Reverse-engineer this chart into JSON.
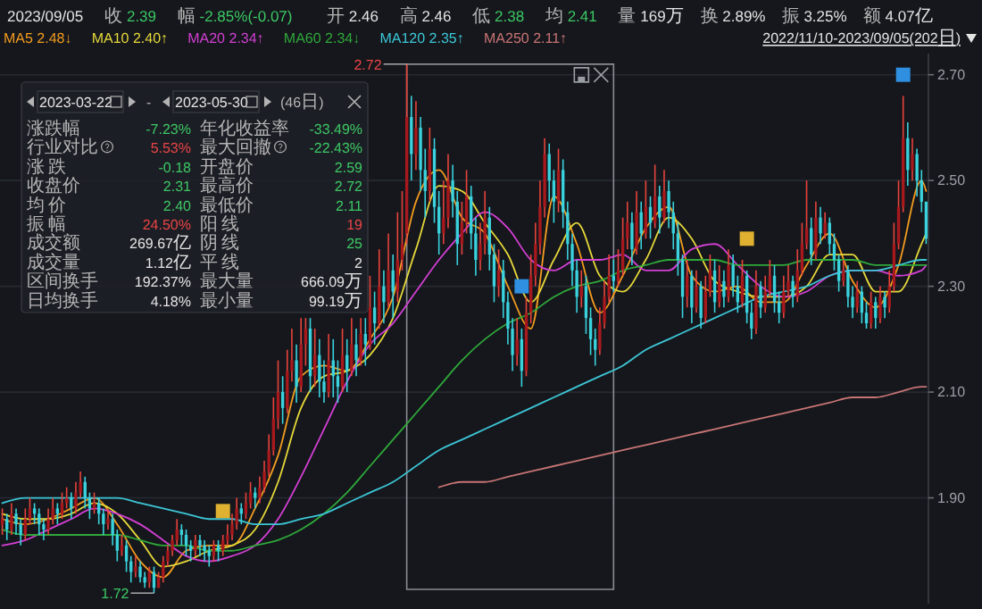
{
  "chart_data": {
    "type": "candlestick",
    "categories": [
      null,
      null,
      null,
      null,
      null,
      null,
      null,
      null,
      null,
      null,
      null,
      null,
      null,
      null,
      null,
      null,
      null,
      null,
      null,
      null,
      null,
      null,
      null,
      null,
      null,
      null,
      null,
      null,
      null,
      null,
      null,
      null,
      null,
      null,
      null,
      null,
      null,
      null,
      null,
      null,
      null,
      null,
      null,
      null,
      null,
      null,
      null,
      null,
      null,
      null,
      null,
      null,
      null,
      null,
      null,
      null,
      null,
      null,
      null,
      null,
      null,
      null,
      null,
      null,
      null,
      null,
      null,
      null,
      null,
      null,
      null,
      null,
      null,
      null,
      null,
      null,
      null,
      null,
      null,
      null,
      null,
      null,
      null,
      null,
      null,
      null,
      null,
      null,
      null,
      null,
      null,
      null,
      null,
      null,
      null,
      null,
      null,
      null,
      null,
      null,
      null,
      null,
      null,
      null,
      null,
      null,
      null,
      null,
      null,
      null,
      null,
      null,
      null,
      null,
      null,
      null,
      null,
      null,
      null,
      null,
      null,
      null,
      null,
      null,
      null,
      null,
      null,
      null,
      null,
      null,
      null,
      null,
      null,
      null,
      null,
      null,
      null,
      null,
      null,
      null,
      null,
      null,
      null,
      null,
      null,
      null,
      null,
      null,
      null,
      null,
      null,
      null,
      null,
      null,
      null,
      null,
      null,
      null,
      null,
      null,
      null,
      null,
      null,
      null,
      null,
      null,
      null,
      null,
      null,
      null,
      null,
      null,
      null,
      null,
      null,
      null,
      null,
      null,
      null,
      null,
      null,
      null,
      null,
      null,
      null,
      null,
      null,
      null,
      null,
      null,
      null,
      null,
      null,
      null,
      null,
      null,
      null,
      null,
      null,
      null,
      null,
      null
    ],
    "ohlc": [
      [
        1.85,
        1.88,
        1.83,
        1.86
      ],
      [
        1.86,
        1.87,
        1.82,
        1.84
      ],
      [
        1.84,
        1.89,
        1.83,
        1.87
      ],
      [
        1.87,
        1.88,
        1.83,
        1.85
      ],
      [
        1.85,
        1.86,
        1.81,
        1.83
      ],
      [
        1.83,
        1.88,
        1.82,
        1.86
      ],
      [
        1.86,
        1.9,
        1.85,
        1.88
      ],
      [
        1.88,
        1.89,
        1.85,
        1.87
      ],
      [
        1.87,
        1.88,
        1.83,
        1.85
      ],
      [
        1.85,
        1.86,
        1.82,
        1.84
      ],
      [
        1.84,
        1.88,
        1.83,
        1.86
      ],
      [
        1.86,
        1.9,
        1.85,
        1.88
      ],
      [
        1.88,
        1.89,
        1.85,
        1.87
      ],
      [
        1.87,
        1.91,
        1.86,
        1.89
      ],
      [
        1.89,
        1.92,
        1.88,
        1.9
      ],
      [
        1.9,
        1.91,
        1.86,
        1.88
      ],
      [
        1.88,
        1.93,
        1.87,
        1.91
      ],
      [
        1.91,
        1.95,
        1.9,
        1.93
      ],
      [
        1.93,
        1.94,
        1.88,
        1.9
      ],
      [
        1.9,
        1.91,
        1.86,
        1.88
      ],
      [
        1.88,
        1.91,
        1.87,
        1.89
      ],
      [
        1.89,
        1.9,
        1.85,
        1.87
      ],
      [
        1.87,
        1.88,
        1.83,
        1.85
      ],
      [
        1.85,
        1.88,
        1.84,
        1.86
      ],
      [
        1.86,
        1.87,
        1.81,
        1.83
      ],
      [
        1.83,
        1.84,
        1.78,
        1.8
      ],
      [
        1.8,
        1.83,
        1.79,
        1.81
      ],
      [
        1.81,
        1.82,
        1.76,
        1.78
      ],
      [
        1.78,
        1.79,
        1.74,
        1.76
      ],
      [
        1.76,
        1.79,
        1.75,
        1.77
      ],
      [
        1.77,
        1.78,
        1.74,
        1.75
      ],
      [
        1.75,
        1.76,
        1.73,
        1.74
      ],
      [
        1.74,
        1.77,
        1.73,
        1.76
      ],
      [
        1.76,
        1.77,
        1.72,
        1.73
      ],
      [
        1.73,
        1.76,
        1.73,
        1.75
      ],
      [
        1.75,
        1.79,
        1.74,
        1.78
      ],
      [
        1.78,
        1.81,
        1.77,
        1.8
      ],
      [
        1.8,
        1.83,
        1.79,
        1.82
      ],
      [
        1.82,
        1.86,
        1.81,
        1.84
      ],
      [
        1.84,
        1.85,
        1.81,
        1.83
      ],
      [
        1.83,
        1.84,
        1.79,
        1.81
      ],
      [
        1.81,
        1.82,
        1.78,
        1.8
      ],
      [
        1.8,
        1.83,
        1.79,
        1.82
      ],
      [
        1.82,
        1.83,
        1.79,
        1.81
      ],
      [
        1.81,
        1.82,
        1.78,
        1.8
      ],
      [
        1.8,
        1.81,
        1.77,
        1.79
      ],
      [
        1.79,
        1.82,
        1.78,
        1.81
      ],
      [
        1.81,
        1.82,
        1.78,
        1.8
      ],
      [
        1.8,
        1.83,
        1.79,
        1.82
      ],
      [
        1.82,
        1.85,
        1.81,
        1.83
      ],
      [
        1.83,
        1.87,
        1.82,
        1.85
      ],
      [
        1.85,
        1.9,
        1.84,
        1.88
      ],
      [
        1.88,
        1.89,
        1.85,
        1.87
      ],
      [
        1.87,
        1.91,
        1.86,
        1.89
      ],
      [
        1.89,
        1.93,
        1.88,
        1.91
      ],
      [
        1.91,
        1.92,
        1.88,
        1.9
      ],
      [
        1.9,
        1.94,
        1.89,
        1.92
      ],
      [
        1.92,
        1.97,
        1.91,
        1.95
      ],
      [
        1.95,
        2.02,
        1.94,
        1.99
      ],
      [
        1.99,
        2.09,
        1.98,
        2.05
      ],
      [
        2.05,
        2.16,
        2.03,
        2.1
      ],
      [
        2.1,
        2.13,
        2.04,
        2.07
      ],
      [
        2.07,
        2.18,
        2.06,
        2.14
      ],
      [
        2.14,
        2.22,
        2.12,
        2.16
      ],
      [
        2.16,
        2.19,
        2.08,
        2.11
      ],
      [
        2.11,
        2.24,
        2.1,
        2.19
      ],
      [
        2.19,
        2.24,
        2.15,
        2.22
      ],
      [
        2.22,
        2.24,
        2.1,
        2.13
      ],
      [
        2.13,
        2.22,
        2.11,
        2.17
      ],
      [
        2.17,
        2.2,
        2.09,
        2.12
      ],
      [
        2.12,
        2.16,
        2.08,
        2.1
      ],
      [
        2.1,
        2.21,
        2.09,
        2.16
      ],
      [
        2.16,
        2.2,
        2.09,
        2.13
      ],
      [
        2.13,
        2.16,
        2.08,
        2.11
      ],
      [
        2.11,
        2.22,
        2.1,
        2.17
      ],
      [
        2.17,
        2.2,
        2.1,
        2.14
      ],
      [
        2.14,
        2.24,
        2.13,
        2.19
      ],
      [
        2.19,
        2.22,
        2.13,
        2.16
      ],
      [
        2.16,
        2.24,
        2.15,
        2.21
      ],
      [
        2.21,
        2.24,
        2.15,
        2.19
      ],
      [
        2.19,
        2.32,
        2.18,
        2.26
      ],
      [
        2.26,
        2.29,
        2.19,
        2.23
      ],
      [
        2.23,
        2.37,
        2.22,
        2.3
      ],
      [
        2.3,
        2.33,
        2.23,
        2.27
      ],
      [
        2.27,
        2.4,
        2.26,
        2.33
      ],
      [
        2.33,
        2.36,
        2.24,
        2.29
      ],
      [
        2.29,
        2.44,
        2.27,
        2.35
      ],
      [
        2.35,
        2.48,
        2.33,
        2.38
      ],
      [
        2.4,
        2.72,
        2.38,
        2.62
      ],
      [
        2.62,
        2.66,
        2.5,
        2.55
      ],
      [
        2.55,
        2.65,
        2.52,
        2.6
      ],
      [
        2.6,
        2.62,
        2.48,
        2.52
      ],
      [
        2.52,
        2.56,
        2.43,
        2.48
      ],
      [
        2.48,
        2.6,
        2.46,
        2.56
      ],
      [
        2.56,
        2.58,
        2.42,
        2.45
      ],
      [
        2.45,
        2.48,
        2.36,
        2.4
      ],
      [
        2.4,
        2.5,
        2.38,
        2.43
      ],
      [
        2.43,
        2.55,
        2.41,
        2.5
      ],
      [
        2.5,
        2.53,
        2.43,
        2.46
      ],
      [
        2.46,
        2.48,
        2.34,
        2.38
      ],
      [
        2.38,
        2.46,
        2.36,
        2.42
      ],
      [
        2.42,
        2.52,
        2.4,
        2.47
      ],
      [
        2.47,
        2.49,
        2.37,
        2.4
      ],
      [
        2.4,
        2.43,
        2.32,
        2.35
      ],
      [
        2.35,
        2.42,
        2.33,
        2.38
      ],
      [
        2.38,
        2.48,
        2.36,
        2.43
      ],
      [
        2.43,
        2.45,
        2.33,
        2.36
      ],
      [
        2.36,
        2.38,
        2.27,
        2.3
      ],
      [
        2.3,
        2.37,
        2.28,
        2.33
      ],
      [
        2.33,
        2.35,
        2.24,
        2.27
      ],
      [
        2.27,
        2.29,
        2.19,
        2.22
      ],
      [
        2.22,
        2.24,
        2.14,
        2.17
      ],
      [
        2.17,
        2.24,
        2.15,
        2.2
      ],
      [
        2.2,
        2.22,
        2.11,
        2.14
      ],
      [
        2.14,
        2.28,
        2.13,
        2.25
      ],
      [
        2.25,
        2.36,
        2.23,
        2.32
      ],
      [
        2.32,
        2.42,
        2.3,
        2.38
      ],
      [
        2.38,
        2.5,
        2.36,
        2.45
      ],
      [
        2.45,
        2.58,
        2.43,
        2.55
      ],
      [
        2.55,
        2.57,
        2.46,
        2.5
      ],
      [
        2.5,
        2.52,
        2.42,
        2.46
      ],
      [
        2.46,
        2.56,
        2.44,
        2.52
      ],
      [
        2.52,
        2.54,
        2.41,
        2.44
      ],
      [
        2.44,
        2.46,
        2.35,
        2.38
      ],
      [
        2.38,
        2.4,
        2.3,
        2.33
      ],
      [
        2.33,
        2.35,
        2.25,
        2.28
      ],
      [
        2.28,
        2.33,
        2.26,
        2.3
      ],
      [
        2.3,
        2.32,
        2.21,
        2.24
      ],
      [
        2.24,
        2.26,
        2.17,
        2.2
      ],
      [
        2.2,
        2.22,
        2.15,
        2.18
      ],
      [
        2.18,
        2.26,
        2.17,
        2.23
      ],
      [
        2.23,
        2.31,
        2.22,
        2.28
      ],
      [
        2.28,
        2.36,
        2.27,
        2.32
      ],
      [
        2.32,
        2.35,
        2.29,
        2.31
      ],
      [
        2.31,
        2.37,
        2.3,
        2.33
      ],
      [
        2.33,
        2.43,
        2.32,
        2.39
      ],
      [
        2.39,
        2.46,
        2.37,
        2.42
      ],
      [
        2.42,
        2.44,
        2.34,
        2.37
      ],
      [
        2.37,
        2.48,
        2.36,
        2.44
      ],
      [
        2.44,
        2.46,
        2.37,
        2.4
      ],
      [
        2.4,
        2.5,
        2.39,
        2.45
      ],
      [
        2.45,
        2.47,
        2.39,
        2.42
      ],
      [
        2.42,
        2.53,
        2.41,
        2.47
      ],
      [
        2.47,
        2.49,
        2.4,
        2.43
      ],
      [
        2.43,
        2.52,
        2.42,
        2.48
      ],
      [
        2.48,
        2.5,
        2.41,
        2.44
      ],
      [
        2.44,
        2.46,
        2.37,
        2.4
      ],
      [
        2.4,
        2.42,
        2.32,
        2.35
      ],
      [
        2.35,
        2.36,
        2.24,
        2.28
      ],
      [
        2.28,
        2.35,
        2.26,
        2.32
      ],
      [
        2.32,
        2.33,
        2.23,
        2.26
      ],
      [
        2.26,
        2.33,
        2.25,
        2.3
      ],
      [
        2.3,
        2.31,
        2.22,
        2.24
      ],
      [
        2.24,
        2.32,
        2.23,
        2.29
      ],
      [
        2.29,
        2.36,
        2.28,
        2.33
      ],
      [
        2.33,
        2.35,
        2.25,
        2.27
      ],
      [
        2.27,
        2.34,
        2.26,
        2.31
      ],
      [
        2.31,
        2.33,
        2.26,
        2.28
      ],
      [
        2.28,
        2.37,
        2.27,
        2.34
      ],
      [
        2.34,
        2.36,
        2.28,
        2.3
      ],
      [
        2.3,
        2.32,
        2.25,
        2.27
      ],
      [
        2.27,
        2.35,
        2.26,
        2.32
      ],
      [
        2.32,
        2.33,
        2.23,
        2.25
      ],
      [
        2.25,
        2.27,
        2.2,
        2.22
      ],
      [
        2.22,
        2.33,
        2.21,
        2.3
      ],
      [
        2.3,
        2.31,
        2.24,
        2.26
      ],
      [
        2.26,
        2.32,
        2.25,
        2.29
      ],
      [
        2.29,
        2.35,
        2.28,
        2.32
      ],
      [
        2.32,
        2.34,
        2.25,
        2.27
      ],
      [
        2.27,
        2.29,
        2.23,
        2.25
      ],
      [
        2.25,
        2.32,
        2.24,
        2.29
      ],
      [
        2.29,
        2.34,
        2.28,
        2.31
      ],
      [
        2.31,
        2.32,
        2.26,
        2.28
      ],
      [
        2.28,
        2.37,
        2.27,
        2.33
      ],
      [
        2.33,
        2.42,
        2.32,
        2.38
      ],
      [
        2.38,
        2.5,
        2.37,
        2.41
      ],
      [
        2.41,
        2.43,
        2.34,
        2.36
      ],
      [
        2.36,
        2.46,
        2.35,
        2.43
      ],
      [
        2.43,
        2.45,
        2.38,
        2.4
      ],
      [
        2.4,
        2.44,
        2.39,
        2.42
      ],
      [
        2.42,
        2.43,
        2.36,
        2.38
      ],
      [
        2.38,
        2.4,
        2.33,
        2.35
      ],
      [
        2.35,
        2.36,
        2.29,
        2.31
      ],
      [
        2.31,
        2.35,
        2.3,
        2.33
      ],
      [
        2.33,
        2.34,
        2.26,
        2.28
      ],
      [
        2.28,
        2.3,
        2.24,
        2.26
      ],
      [
        2.26,
        2.31,
        2.25,
        2.29
      ],
      [
        2.29,
        2.3,
        2.23,
        2.25
      ],
      [
        2.25,
        2.27,
        2.22,
        2.23
      ],
      [
        2.23,
        2.29,
        2.22,
        2.27
      ],
      [
        2.27,
        2.28,
        2.22,
        2.24
      ],
      [
        2.24,
        2.3,
        2.23,
        2.28
      ],
      [
        2.28,
        2.29,
        2.24,
        2.26
      ],
      [
        2.26,
        2.33,
        2.25,
        2.3
      ],
      [
        2.3,
        2.42,
        2.29,
        2.38
      ],
      [
        2.38,
        2.5,
        2.37,
        2.45
      ],
      [
        2.45,
        2.66,
        2.44,
        2.58
      ],
      [
        2.58,
        2.61,
        2.49,
        2.52
      ],
      [
        2.52,
        2.58,
        2.5,
        2.55
      ],
      [
        2.55,
        2.56,
        2.47,
        2.5
      ],
      [
        2.5,
        2.52,
        2.44,
        2.46
      ],
      [
        2.46,
        2.46,
        2.38,
        2.39
      ]
    ],
    "series": [
      {
        "type": "line",
        "name": "MA5 2.48↓",
        "color": "#f39c1f",
        "values": [
          1.86,
          null,
          null,
          null,
          null,
          1.85,
          null,
          null,
          null,
          null,
          1.86,
          null,
          null,
          null,
          null,
          1.88,
          null,
          null,
          null,
          null,
          1.9,
          null,
          null,
          null,
          null,
          1.85,
          null,
          null,
          null,
          null,
          1.78,
          null,
          null,
          null,
          null,
          1.75,
          null,
          null,
          null,
          null,
          1.8,
          null,
          null,
          null,
          null,
          1.81,
          null,
          null,
          null,
          null,
          1.81,
          null,
          null,
          null,
          null,
          1.88,
          null,
          null,
          null,
          null,
          1.98,
          null,
          null,
          null,
          null,
          2.13,
          null,
          null,
          null,
          null,
          2.15,
          null,
          null,
          null,
          null,
          2.14,
          null,
          null,
          null,
          null,
          2.2,
          null,
          null,
          null,
          null,
          2.28,
          null,
          null,
          null,
          null,
          2.46,
          null,
          null,
          null,
          null,
          2.52,
          null,
          null,
          null,
          null,
          2.43,
          null,
          null,
          null,
          null,
          2.4,
          null,
          null,
          null,
          null,
          2.3,
          null,
          null,
          null,
          null,
          2.22,
          null,
          null,
          null,
          null,
          2.47,
          null,
          null,
          null,
          null,
          2.38,
          null,
          null,
          null,
          null,
          2.25,
          null,
          null,
          null,
          null,
          2.32,
          null,
          null,
          null,
          null,
          2.41,
          null,
          null,
          null,
          null,
          2.45,
          null,
          null,
          null,
          null,
          2.32,
          null,
          null,
          null,
          null,
          2.29,
          null,
          null,
          null,
          null,
          2.3,
          null,
          null,
          null,
          null,
          2.27,
          null,
          null,
          null,
          null,
          2.27,
          null,
          null,
          null,
          null,
          2.34,
          null,
          null,
          null,
          null,
          2.4,
          null,
          null,
          null,
          null,
          2.31,
          null,
          null,
          null,
          null,
          2.26,
          null,
          null,
          null,
          null,
          2.34,
          null,
          null,
          null,
          null,
          2.5,
          2.48
        ]
      },
      {
        "type": "line",
        "name": "MA10 2.40↑",
        "color": "#e6d83a",
        "values": [
          1.87,
          null,
          null,
          null,
          null,
          1.86,
          null,
          null,
          null,
          null,
          1.86,
          null,
          null,
          null,
          null,
          1.87,
          null,
          null,
          null,
          null,
          1.89,
          null,
          null,
          null,
          null,
          1.87,
          null,
          null,
          null,
          null,
          1.82,
          null,
          null,
          null,
          null,
          1.77,
          null,
          null,
          null,
          null,
          1.78,
          null,
          null,
          null,
          null,
          1.8,
          null,
          null,
          null,
          null,
          1.81,
          null,
          null,
          null,
          null,
          1.84,
          null,
          null,
          null,
          null,
          1.93,
          null,
          null,
          null,
          null,
          2.07,
          null,
          null,
          null,
          null,
          2.13,
          null,
          null,
          null,
          null,
          2.14,
          null,
          null,
          null,
          null,
          2.17,
          null,
          null,
          null,
          null,
          2.24,
          null,
          null,
          null,
          null,
          2.37,
          null,
          null,
          null,
          null,
          2.49,
          null,
          null,
          null,
          null,
          2.48,
          null,
          null,
          null,
          null,
          2.42,
          null,
          null,
          null,
          null,
          2.36,
          null,
          null,
          null,
          null,
          2.27,
          null,
          null,
          null,
          null,
          2.35,
          null,
          null,
          null,
          null,
          2.42,
          null,
          null,
          null,
          null,
          2.32,
          null,
          null,
          null,
          null,
          2.29,
          null,
          null,
          null,
          null,
          2.35,
          null,
          null,
          null,
          null,
          2.43,
          null,
          null,
          null,
          null,
          2.39,
          null,
          null,
          null,
          null,
          2.31,
          null,
          null,
          null,
          null,
          2.29,
          null,
          null,
          null,
          null,
          2.28,
          null,
          null,
          null,
          null,
          2.28,
          null,
          null,
          null,
          null,
          2.3,
          null,
          null,
          null,
          null,
          2.36,
          null,
          null,
          null,
          null,
          2.36,
          null,
          null,
          null,
          null,
          2.29,
          null,
          null,
          null,
          null,
          2.29,
          null,
          null,
          null,
          null,
          2.38,
          2.4
        ]
      },
      {
        "type": "line",
        "name": "MA20 2.34↑",
        "color": "#d43fd4",
        "values": [
          1.81,
          null,
          null,
          null,
          null,
          1.82,
          null,
          null,
          null,
          null,
          1.84,
          null,
          null,
          null,
          null,
          1.86,
          null,
          null,
          null,
          null,
          1.88,
          null,
          null,
          null,
          null,
          1.87,
          null,
          null,
          null,
          null,
          1.85,
          null,
          null,
          null,
          null,
          1.82,
          null,
          null,
          null,
          null,
          1.79,
          null,
          null,
          null,
          null,
          1.78,
          null,
          null,
          null,
          null,
          1.79,
          null,
          null,
          null,
          null,
          1.81,
          null,
          null,
          null,
          null,
          1.86,
          null,
          null,
          null,
          null,
          1.94,
          null,
          null,
          null,
          null,
          2.03,
          null,
          null,
          null,
          null,
          2.12,
          null,
          null,
          null,
          null,
          2.19,
          null,
          null,
          null,
          null,
          2.23,
          null,
          null,
          null,
          null,
          2.29,
          null,
          null,
          null,
          null,
          2.35,
          null,
          null,
          null,
          null,
          2.4,
          null,
          null,
          null,
          null,
          2.44,
          null,
          null,
          null,
          null,
          2.41,
          null,
          null,
          null,
          null,
          2.35,
          null,
          null,
          null,
          null,
          2.33,
          null,
          null,
          null,
          null,
          2.35,
          null,
          null,
          null,
          null,
          2.35,
          null,
          null,
          null,
          null,
          2.36,
          null,
          null,
          null,
          null,
          2.33,
          null,
          null,
          null,
          null,
          2.33,
          null,
          null,
          null,
          null,
          2.37,
          null,
          null,
          null,
          null,
          2.38,
          null,
          null,
          null,
          null,
          2.34,
          null,
          null,
          null,
          null,
          2.3,
          null,
          null,
          null,
          null,
          2.28,
          null,
          null,
          null,
          null,
          2.29,
          null,
          null,
          null,
          null,
          2.32,
          null,
          null,
          null,
          null,
          2.33,
          null,
          null,
          null,
          null,
          2.33,
          null,
          null,
          null,
          null,
          2.32,
          null,
          null,
          null,
          null,
          2.33,
          2.34
        ]
      },
      {
        "type": "line",
        "name": "MA60 2.34↓",
        "color": "#2fa83a",
        "values": [
          1.84,
          null,
          null,
          null,
          null,
          1.83,
          null,
          null,
          null,
          null,
          1.83,
          null,
          null,
          null,
          null,
          1.83,
          null,
          null,
          null,
          null,
          1.83,
          null,
          null,
          null,
          null,
          1.83,
          null,
          null,
          null,
          null,
          1.82,
          null,
          null,
          null,
          null,
          1.81,
          null,
          null,
          null,
          null,
          1.81,
          null,
          null,
          null,
          null,
          1.8,
          null,
          null,
          null,
          null,
          1.8,
          null,
          null,
          null,
          null,
          1.81,
          null,
          null,
          null,
          null,
          1.82,
          null,
          null,
          null,
          null,
          1.84,
          null,
          null,
          null,
          null,
          1.87,
          null,
          null,
          null,
          null,
          1.91,
          null,
          null,
          null,
          null,
          1.96,
          null,
          null,
          null,
          null,
          2.01,
          null,
          null,
          null,
          null,
          2.06,
          null,
          null,
          null,
          null,
          2.11,
          null,
          null,
          null,
          null,
          2.16,
          null,
          null,
          null,
          null,
          2.2,
          null,
          null,
          null,
          null,
          2.23,
          null,
          null,
          null,
          null,
          2.25,
          null,
          null,
          null,
          null,
          2.28,
          null,
          null,
          null,
          null,
          2.3,
          null,
          null,
          null,
          null,
          2.31,
          null,
          null,
          null,
          null,
          2.33,
          null,
          null,
          null,
          null,
          2.34,
          null,
          null,
          null,
          null,
          2.35,
          null,
          null,
          null,
          null,
          2.35,
          null,
          null,
          null,
          null,
          2.35,
          null,
          null,
          null,
          null,
          2.34,
          null,
          null,
          null,
          null,
          2.34,
          null,
          null,
          null,
          null,
          2.34,
          null,
          null,
          null,
          null,
          2.35,
          null,
          null,
          null,
          null,
          2.35,
          null,
          null,
          null,
          null,
          2.35,
          null,
          null,
          null,
          null,
          2.34,
          null,
          null,
          null,
          null,
          2.34,
          null,
          null,
          null,
          null,
          2.34,
          2.34
        ]
      },
      {
        "type": "line",
        "name": "MA120 2.35↑",
        "color": "#3cc6d6",
        "values": [
          1.89,
          null,
          null,
          null,
          null,
          1.9,
          null,
          null,
          null,
          null,
          1.9,
          null,
          null,
          null,
          null,
          1.9,
          null,
          null,
          null,
          null,
          1.9,
          null,
          null,
          null,
          null,
          1.9,
          null,
          null,
          null,
          null,
          1.89,
          null,
          null,
          null,
          null,
          1.88,
          null,
          null,
          null,
          null,
          1.87,
          null,
          null,
          null,
          null,
          1.86,
          null,
          null,
          null,
          null,
          1.86,
          null,
          null,
          null,
          null,
          1.85,
          null,
          null,
          null,
          null,
          1.85,
          null,
          null,
          null,
          null,
          1.86,
          null,
          null,
          null,
          null,
          1.87,
          null,
          null,
          null,
          null,
          1.89,
          null,
          null,
          null,
          null,
          1.91,
          null,
          null,
          null,
          null,
          1.93,
          null,
          null,
          null,
          null,
          1.96,
          null,
          null,
          null,
          null,
          1.99,
          null,
          null,
          null,
          null,
          2.01,
          null,
          null,
          null,
          null,
          2.03,
          null,
          null,
          null,
          null,
          2.05,
          null,
          null,
          null,
          null,
          2.07,
          null,
          null,
          null,
          null,
          2.09,
          null,
          null,
          null,
          null,
          2.11,
          null,
          null,
          null,
          null,
          2.13,
          null,
          null,
          null,
          null,
          2.15,
          null,
          null,
          null,
          null,
          2.18,
          null,
          null,
          null,
          null,
          2.2,
          null,
          null,
          null,
          null,
          2.22,
          null,
          null,
          null,
          null,
          2.24,
          null,
          null,
          null,
          null,
          2.26,
          null,
          null,
          null,
          null,
          2.28,
          null,
          null,
          null,
          null,
          2.29,
          null,
          null,
          null,
          null,
          2.3,
          null,
          null,
          null,
          null,
          2.32,
          null,
          null,
          null,
          null,
          2.33,
          null,
          null,
          null,
          null,
          2.33,
          null,
          null,
          null,
          null,
          2.34,
          null,
          null,
          null,
          null,
          2.35,
          2.35
        ]
      },
      {
        "type": "line",
        "name": "MA250 2.11↑",
        "color": "#c87474",
        "values": [
          null,
          null,
          null,
          null,
          null,
          null,
          null,
          null,
          null,
          null,
          null,
          null,
          null,
          null,
          null,
          null,
          null,
          null,
          null,
          null,
          null,
          null,
          null,
          null,
          null,
          null,
          null,
          null,
          null,
          null,
          null,
          null,
          null,
          null,
          null,
          null,
          null,
          null,
          null,
          null,
          null,
          null,
          null,
          null,
          null,
          null,
          null,
          null,
          null,
          null,
          null,
          null,
          null,
          null,
          null,
          null,
          null,
          null,
          null,
          null,
          null,
          null,
          null,
          null,
          null,
          null,
          null,
          null,
          null,
          null,
          null,
          null,
          null,
          null,
          null,
          null,
          null,
          null,
          null,
          null,
          null,
          null,
          null,
          null,
          null,
          null,
          null,
          null,
          null,
          null,
          null,
          null,
          null,
          null,
          null,
          1.92,
          null,
          null,
          null,
          null,
          1.93,
          null,
          null,
          null,
          null,
          1.93,
          null,
          null,
          null,
          null,
          1.94,
          null,
          null,
          null,
          null,
          1.95,
          null,
          null,
          null,
          null,
          1.96,
          null,
          null,
          null,
          null,
          1.97,
          null,
          null,
          null,
          null,
          1.98,
          null,
          null,
          null,
          null,
          1.99,
          null,
          null,
          null,
          null,
          2.0,
          null,
          null,
          null,
          null,
          2.01,
          null,
          null,
          null,
          null,
          2.02,
          null,
          null,
          null,
          null,
          2.03,
          null,
          null,
          null,
          null,
          2.04,
          null,
          null,
          null,
          null,
          2.05,
          null,
          null,
          null,
          null,
          2.06,
          null,
          null,
          null,
          null,
          2.07,
          null,
          null,
          null,
          null,
          2.08,
          null,
          null,
          null,
          null,
          2.09,
          null,
          null,
          null,
          null,
          2.09,
          null,
          null,
          null,
          null,
          2.1,
          null,
          null,
          null,
          null,
          2.11,
          2.11
        ]
      }
    ],
    "ylim": [
      1.7,
      2.74
    ],
    "yticks": [
      {
        "value": 1.9,
        "label": "1.90"
      },
      {
        "value": 2.1,
        "label": "2.10"
      },
      {
        "value": 2.3,
        "label": "2.30"
      },
      {
        "value": 2.5,
        "label": "2.50"
      },
      {
        "value": 2.7,
        "label": "2.70"
      }
    ],
    "grid": "y",
    "tick_labels": "y",
    "legend": "top left",
    "annotations": [
      "2023/09/05",
      "收 2.39",
      "幅 -2.85%(-0.07)",
      "开 2.46",
      "高 2.46",
      "低 2.38",
      "均 2.41",
      "量 169万",
      "换 2.89%",
      "振 3.25%",
      "额 4.07亿",
      "2022/11/10-2023/09/05(202日)",
      "2023-03-22",
      "-",
      "2023-05-30",
      "(46日)",
      "涨跌幅",
      "-7.23%",
      "年化收益率",
      "-33.49%",
      "行业对比",
      "5.53%",
      "最大回撤",
      "-22.43%",
      "涨 跌",
      "-0.18",
      "开盘价",
      "2.59",
      "收盘价",
      "2.31",
      "最高价",
      "2.72",
      "均 价",
      "2.40",
      "最低价",
      "2.11",
      "振 幅",
      "24.50%",
      "阳 线",
      "19",
      "成交额",
      "269.67亿",
      "阴 线",
      "25",
      "成交量",
      "1.12亿",
      "平 线",
      "2",
      "区间换手",
      "192.37%",
      "最大量",
      "666.09万",
      "日均换手",
      "4.18%",
      "最小量",
      "99.19万",
      "2.72",
      "1.72"
    ]
  }
}
